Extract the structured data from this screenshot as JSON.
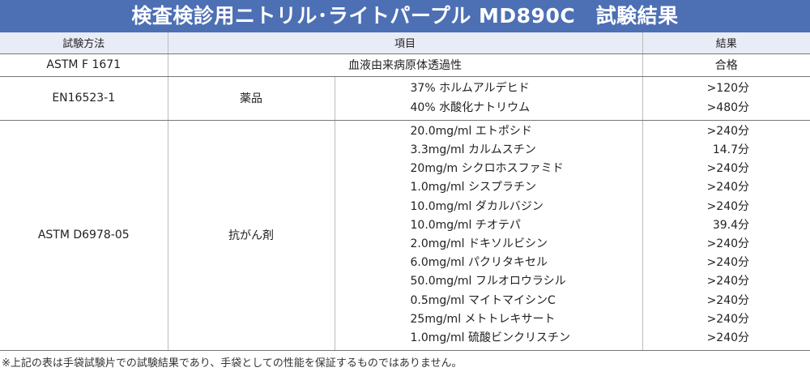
{
  "title": "検査検診用ニトリル･ライトパープル MD890C　試験結果",
  "headers": {
    "method": "試験方法",
    "item": "項目",
    "result": "結果"
  },
  "rows": [
    {
      "method": "ASTM F 1671",
      "item": "血液由来病原体透過性",
      "result": "合格"
    },
    {
      "method": "EN16523-1",
      "category": "薬品",
      "items": [
        {
          "name": "37% ホルムアルデヒド",
          "result": ">120分"
        },
        {
          "name": "40% 水酸化ナトリウム",
          "result": ">480分"
        }
      ]
    },
    {
      "method": "ASTM D6978-05",
      "category": "抗がん剤",
      "items": [
        {
          "name": "20.0mg/ml エトポシド",
          "result": ">240分"
        },
        {
          "name": "3.3mg/ml カルムスチン",
          "result": "14.7分"
        },
        {
          "name": "20mg/m シクロホスファミド",
          "result": ">240分"
        },
        {
          "name": "1.0mg/ml シスプラチン",
          "result": ">240分"
        },
        {
          "name": "10.0mg/ml ダカルバジン",
          "result": ">240分"
        },
        {
          "name": "10.0mg/ml チオテパ",
          "result": "39.4分"
        },
        {
          "name": "2.0mg/ml ドキソルビシン",
          "result": ">240分"
        },
        {
          "name": "6.0mg/ml パクリタキセル",
          "result": ">240分"
        },
        {
          "name": "50.0mg/ml フルオロウラシル",
          "result": ">240分"
        },
        {
          "name": "0.5mg/ml マイトマイシンC",
          "result": ">240分"
        },
        {
          "name": "25mg/ml メトトレキサート",
          "result": ">240分"
        },
        {
          "name": "1.0mg/ml 硫酸ビンクリスチン",
          "result": ">240分"
        }
      ]
    }
  ],
  "footnote": "※上記の表は手袋試験片での試験結果であり、手袋としての性能を保証するものではありません。"
}
